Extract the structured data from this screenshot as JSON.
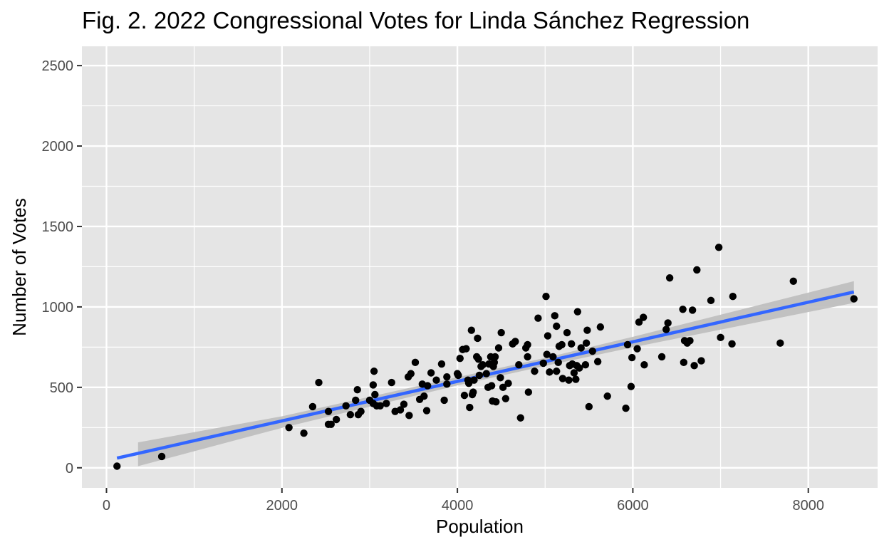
{
  "chart_data": {
    "type": "scatter",
    "title": "Fig. 2. 2022 Congressional Votes for Linda Sánchez Regression",
    "xlabel": "Population",
    "ylabel": "Number of Votes",
    "xlim": [
      -280,
      8790
    ],
    "ylim": [
      -125,
      2620
    ],
    "x_major_ticks": [
      0,
      2000,
      4000,
      6000,
      8000
    ],
    "x_tick_labels": [
      "0",
      "2000",
      "4000",
      "6000",
      "8000"
    ],
    "x_minor_ticks": [
      1000,
      3000,
      5000,
      7000
    ],
    "y_major_ticks": [
      0,
      500,
      1000,
      1500,
      2000,
      2500
    ],
    "y_tick_labels": [
      "0",
      "500",
      "1000",
      "1500",
      "2000",
      "2500"
    ],
    "y_minor_ticks": [
      250,
      750,
      1250,
      1750,
      2250
    ],
    "grid": true,
    "legend": "none",
    "colors": {
      "panel_background": "#e5e5e5",
      "grid_lines": "#ffffff",
      "points": "#000000",
      "regression_line": "#3366ff",
      "confidence_band": "#bdbdbd"
    },
    "points": [
      [
        120,
        10
      ],
      [
        630,
        70
      ],
      [
        2080,
        250
      ],
      [
        2250,
        215
      ],
      [
        2350,
        380
      ],
      [
        2420,
        530
      ],
      [
        2530,
        270
      ],
      [
        2560,
        270
      ],
      [
        2530,
        350
      ],
      [
        2620,
        300
      ],
      [
        2730,
        385
      ],
      [
        2780,
        330
      ],
      [
        2840,
        420
      ],
      [
        2860,
        485
      ],
      [
        2870,
        330
      ],
      [
        2900,
        350
      ],
      [
        3000,
        420
      ],
      [
        3040,
        400
      ],
      [
        3060,
        455
      ],
      [
        3040,
        515
      ],
      [
        3050,
        600
      ],
      [
        3080,
        385
      ],
      [
        3120,
        385
      ],
      [
        3190,
        400
      ],
      [
        3250,
        530
      ],
      [
        3290,
        350
      ],
      [
        3350,
        360
      ],
      [
        3390,
        395
      ],
      [
        3450,
        325
      ],
      [
        3440,
        565
      ],
      [
        3470,
        585
      ],
      [
        3520,
        655
      ],
      [
        3570,
        425
      ],
      [
        3600,
        520
      ],
      [
        3620,
        445
      ],
      [
        3650,
        355
      ],
      [
        3660,
        510
      ],
      [
        3700,
        590
      ],
      [
        3760,
        545
      ],
      [
        3820,
        645
      ],
      [
        3850,
        420
      ],
      [
        3880,
        520
      ],
      [
        3880,
        565
      ],
      [
        4000,
        585
      ],
      [
        4010,
        575
      ],
      [
        4030,
        680
      ],
      [
        4060,
        735
      ],
      [
        4080,
        450
      ],
      [
        4100,
        740
      ],
      [
        4120,
        545
      ],
      [
        4130,
        525
      ],
      [
        4140,
        375
      ],
      [
        4160,
        855
      ],
      [
        4170,
        455
      ],
      [
        4180,
        470
      ],
      [
        4190,
        545
      ],
      [
        4220,
        690
      ],
      [
        4230,
        805
      ],
      [
        4240,
        675
      ],
      [
        4250,
        575
      ],
      [
        4270,
        630
      ],
      [
        4290,
        640
      ],
      [
        4330,
        585
      ],
      [
        4350,
        500
      ],
      [
        4360,
        645
      ],
      [
        4380,
        690
      ],
      [
        4390,
        510
      ],
      [
        4400,
        415
      ],
      [
        4410,
        630
      ],
      [
        4420,
        655
      ],
      [
        4430,
        690
      ],
      [
        4440,
        410
      ],
      [
        4470,
        745
      ],
      [
        4490,
        560
      ],
      [
        4500,
        840
      ],
      [
        4520,
        500
      ],
      [
        4550,
        430
      ],
      [
        4580,
        525
      ],
      [
        4630,
        770
      ],
      [
        4660,
        785
      ],
      [
        4700,
        640
      ],
      [
        4720,
        310
      ],
      [
        4780,
        745
      ],
      [
        4800,
        765
      ],
      [
        4800,
        690
      ],
      [
        4810,
        470
      ],
      [
        4880,
        600
      ],
      [
        4920,
        930
      ],
      [
        4980,
        650
      ],
      [
        5010,
        1065
      ],
      [
        5020,
        705
      ],
      [
        5030,
        820
      ],
      [
        5050,
        595
      ],
      [
        5090,
        690
      ],
      [
        5110,
        945
      ],
      [
        5130,
        880
      ],
      [
        5130,
        600
      ],
      [
        5150,
        655
      ],
      [
        5160,
        755
      ],
      [
        5190,
        765
      ],
      [
        5200,
        555
      ],
      [
        5250,
        840
      ],
      [
        5270,
        545
      ],
      [
        5280,
        635
      ],
      [
        5300,
        770
      ],
      [
        5310,
        645
      ],
      [
        5330,
        590
      ],
      [
        5350,
        550
      ],
      [
        5360,
        635
      ],
      [
        5370,
        970
      ],
      [
        5390,
        620
      ],
      [
        5410,
        745
      ],
      [
        5460,
        640
      ],
      [
        5470,
        775
      ],
      [
        5480,
        855
      ],
      [
        5500,
        380
      ],
      [
        5540,
        725
      ],
      [
        5600,
        660
      ],
      [
        5630,
        875
      ],
      [
        5710,
        445
      ],
      [
        5920,
        370
      ],
      [
        5940,
        765
      ],
      [
        5980,
        505
      ],
      [
        5990,
        685
      ],
      [
        6050,
        740
      ],
      [
        6070,
        905
      ],
      [
        6120,
        935
      ],
      [
        6130,
        640
      ],
      [
        6330,
        690
      ],
      [
        6380,
        860
      ],
      [
        6400,
        900
      ],
      [
        6420,
        1180
      ],
      [
        6570,
        985
      ],
      [
        6580,
        655
      ],
      [
        6590,
        790
      ],
      [
        6620,
        775
      ],
      [
        6650,
        790
      ],
      [
        6680,
        980
      ],
      [
        6700,
        635
      ],
      [
        6730,
        1230
      ],
      [
        6780,
        665
      ],
      [
        6890,
        1040
      ],
      [
        6980,
        1370
      ],
      [
        7000,
        810
      ],
      [
        7130,
        770
      ],
      [
        7140,
        1065
      ],
      [
        7680,
        775
      ],
      [
        7830,
        1160
      ],
      [
        8520,
        1050
      ]
    ],
    "regression_line": [
      [
        120,
        60
      ],
      [
        8520,
        1093
      ]
    ],
    "confidence_band": {
      "x": [
        360,
        2000,
        4000,
        5000,
        6000,
        8520
      ],
      "upper": [
        158,
        320,
        563,
        683,
        814,
        1160
      ],
      "lower": [
        10,
        248,
        512,
        633,
        749,
        1025
      ]
    }
  }
}
